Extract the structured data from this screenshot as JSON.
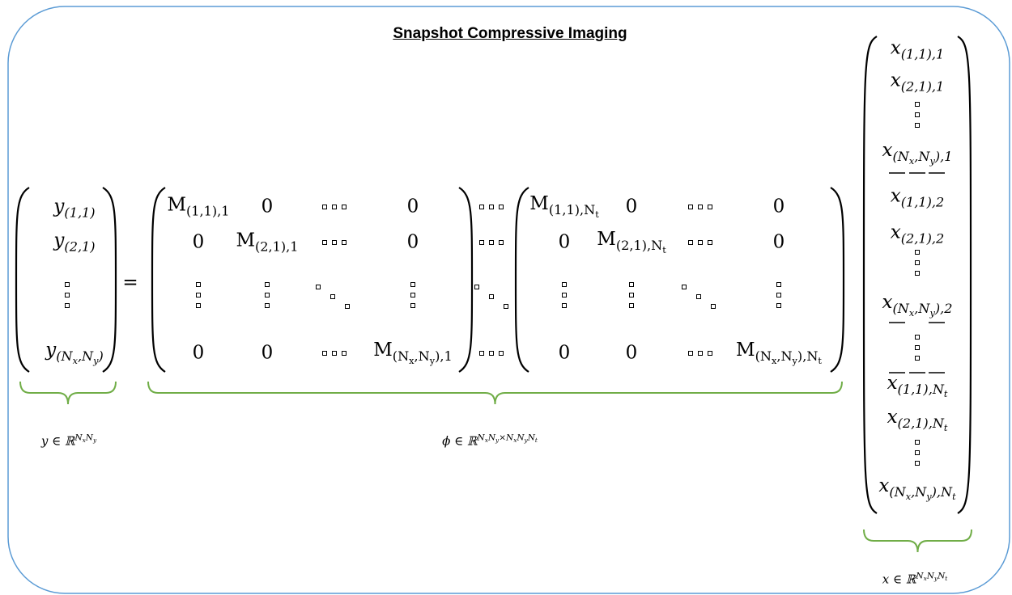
{
  "title": "Snapshot Compressive Imaging",
  "y_vector": {
    "entries": [
      [
        "y",
        {
          "sub": [
            "(1,1)"
          ]
        }
      ],
      [
        "y",
        {
          "sub": [
            "(2,1)"
          ]
        }
      ],
      [
        "y",
        {
          "sub": [
            "(N",
            {
              "sub": [
                "x"
              ]
            },
            ",N",
            {
              "sub": [
                "y"
              ]
            },
            ")"
          ]
        }
      ]
    ]
  },
  "equals": "=",
  "phi_matrix_1": {
    "rows": [
      [
        [
          "M",
          {
            "sub": [
              "(1,1),1"
            ]
          }
        ],
        "0",
        "0"
      ],
      [
        "0",
        [
          "M",
          {
            "sub": [
              "(2,1),1"
            ]
          }
        ],
        "0"
      ],
      [
        "0",
        "0",
        [
          "M",
          {
            "sub": [
              "(N",
              {
                "sub": [
                  "x"
                ]
              },
              ",N",
              {
                "sub": [
                  "y"
                ]
              },
              "),1"
            ]
          }
        ]
      ]
    ]
  },
  "phi_matrix_2": {
    "rows": [
      [
        [
          "M",
          {
            "sub": [
              "(1,1),N",
              {
                "sub": [
                  "t"
                ]
              }
            ]
          }
        ],
        "0",
        "0"
      ],
      [
        "0",
        [
          "M",
          {
            "sub": [
              "(2,1),N",
              {
                "sub": [
                  "t"
                ]
              }
            ]
          }
        ],
        "0"
      ],
      [
        "0",
        "0",
        [
          "M",
          {
            "sub": [
              "(N",
              {
                "sub": [
                  "x"
                ]
              },
              ",N",
              {
                "sub": [
                  "y"
                ]
              },
              "),N",
              {
                "sub": [
                  "t"
                ]
              }
            ]
          }
        ]
      ]
    ]
  },
  "x_vector": {
    "entries": [
      [
        "x",
        {
          "sub": [
            "(1,1),1"
          ]
        }
      ],
      [
        "x",
        {
          "sub": [
            "(2,1),1"
          ]
        }
      ],
      [
        "x",
        {
          "sub": [
            "(N",
            {
              "sub": [
                "x"
              ]
            },
            ",N",
            {
              "sub": [
                "y"
              ]
            },
            "),1"
          ]
        }
      ],
      [
        "x",
        {
          "sub": [
            "(1,1),2"
          ]
        }
      ],
      [
        "x",
        {
          "sub": [
            "(2,1),2"
          ]
        }
      ],
      [
        "x",
        {
          "sub": [
            "(N",
            {
              "sub": [
                "x"
              ]
            },
            ",N",
            {
              "sub": [
                "y"
              ]
            },
            "),2"
          ]
        }
      ],
      [
        "x",
        {
          "sub": [
            "(1,1),N",
            {
              "sub": [
                "t"
              ]
            }
          ]
        }
      ],
      [
        "x",
        {
          "sub": [
            "(2,1),N",
            {
              "sub": [
                "t"
              ]
            }
          ]
        }
      ],
      [
        "x",
        {
          "sub": [
            "(N",
            {
              "sub": [
                "x"
              ]
            },
            ",N",
            {
              "sub": [
                "y"
              ]
            },
            "),N",
            {
              "sub": [
                "t"
              ]
            }
          ]
        }
      ]
    ]
  },
  "labels": {
    "y": [
      "y ∈ ℝ",
      {
        "sup": [
          "N",
          {
            "sub": [
              "x"
            ]
          },
          "N",
          {
            "sub": [
              "y"
            ]
          }
        ]
      }
    ],
    "phi": [
      "ϕ ∈ ℝ",
      {
        "sup": [
          "N",
          {
            "sub": [
              "x"
            ]
          },
          "N",
          {
            "sub": [
              "y"
            ]
          },
          "×N",
          {
            "sub": [
              "x"
            ]
          },
          "N",
          {
            "sub": [
              "y"
            ]
          },
          "N",
          {
            "sub": [
              "t"
            ]
          }
        ]
      }
    ],
    "x": [
      "x ∈ ℝ",
      {
        "sup": [
          "N",
          {
            "sub": [
              "x"
            ]
          },
          "N",
          {
            "sub": [
              "y"
            ]
          },
          "N",
          {
            "sub": [
              "t"
            ]
          }
        ]
      }
    ]
  }
}
